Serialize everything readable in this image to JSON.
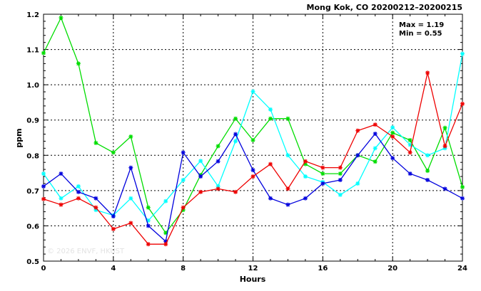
{
  "chart_data": {
    "type": "line",
    "title": "Mong Kok, CO 20200212–20200215",
    "stats": {
      "max": "Max = 1.19",
      "min": "Min = 0.55"
    },
    "xlabel": "Hours",
    "ylabel": "ppm",
    "xlim": [
      0,
      24
    ],
    "ylim": [
      0.5,
      1.2
    ],
    "xticks": [
      0,
      4,
      8,
      12,
      16,
      20,
      24
    ],
    "yticks": [
      0.5,
      0.6,
      0.7,
      0.8,
      0.9,
      1.0,
      1.1,
      1.2
    ],
    "ytick_labels": [
      "0.5",
      "0.6",
      "0.7",
      "0.8",
      "0.9",
      "1.0",
      "1.1",
      "1.2"
    ],
    "grid": true,
    "watermark": "© 2026  ENVF, HKUST",
    "x": [
      0,
      1,
      2,
      3,
      4,
      5,
      6,
      7,
      8,
      9,
      10,
      11,
      12,
      13,
      14,
      15,
      16,
      17,
      18,
      19,
      20,
      21,
      22,
      23,
      24
    ],
    "series": [
      {
        "color": "#00dd00",
        "values": [
          1.09,
          1.19,
          1.06,
          0.835,
          0.808,
          0.853,
          0.652,
          0.58,
          0.645,
          0.744,
          0.826,
          0.904,
          0.843,
          0.904,
          0.904,
          0.775,
          0.748,
          0.748,
          0.8,
          0.782,
          0.864,
          0.843,
          0.756,
          0.878,
          0.71
        ]
      },
      {
        "color": "#00ffff",
        "values": [
          0.748,
          0.678,
          0.712,
          0.645,
          0.63,
          0.678,
          0.615,
          0.67,
          0.73,
          0.784,
          0.712,
          0.84,
          0.981,
          0.93,
          0.8,
          0.74,
          0.724,
          0.688,
          0.72,
          0.82,
          0.879,
          0.83,
          0.8,
          0.82,
          1.088
        ]
      },
      {
        "color": "#0000dd",
        "values": [
          0.712,
          0.748,
          0.696,
          0.678,
          0.627,
          0.765,
          0.6,
          0.556,
          0.808,
          0.74,
          0.783,
          0.86,
          0.758,
          0.678,
          0.66,
          0.678,
          0.72,
          0.73,
          0.8,
          0.861,
          0.792,
          0.748,
          0.73,
          0.705,
          0.678
        ]
      },
      {
        "color": "#ee0000",
        "values": [
          0.676,
          0.66,
          0.678,
          0.652,
          0.591,
          0.608,
          0.548,
          0.548,
          0.652,
          0.696,
          0.705,
          0.696,
          0.74,
          0.775,
          0.705,
          0.783,
          0.765,
          0.765,
          0.87,
          0.887,
          0.853,
          0.808,
          1.034,
          0.826,
          0.946
        ]
      }
    ]
  }
}
